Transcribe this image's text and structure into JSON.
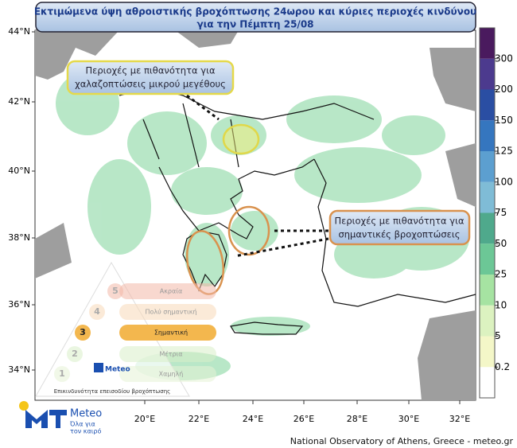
{
  "title": [
    "Εκτιμώμενα ύψη αθροιστικής βροχόπτωσης 24ωρου και κύριες περιοχές κινδύνου",
    "για την Πέμπτη 25/08"
  ],
  "annotations": [
    {
      "text": [
        "Περιοχές με πιθανότητα για",
        "χαλαζοπτώσεις μικρού μεγέθους"
      ]
    },
    {
      "text": [
        "Περιοχές με πιθανότητα για",
        "σημαντικές βροχοπτώσεις"
      ]
    }
  ],
  "lat_labels": [
    "44°N",
    "42°N",
    "40°N",
    "38°N",
    "36°N",
    "34°N"
  ],
  "lon_labels": [
    "20°E",
    "22°E",
    "24°E",
    "26°E",
    "28°E",
    "30°E",
    "32°E"
  ],
  "colorbar": {
    "labels": [
      "0.2",
      "5",
      "10",
      "25",
      "50",
      "75",
      "100",
      "125",
      "150",
      "200",
      "300"
    ],
    "colors": [
      "#ffffff",
      "#f4f7c8",
      "#dcf2c0",
      "#a6e3a2",
      "#6cc796",
      "#4fa98c",
      "#7fbcd6",
      "#5c9fd0",
      "#3576bf",
      "#2a4ea3",
      "#4c3a8e",
      "#4a1a5e"
    ]
  },
  "risk_scale": {
    "levels": [
      {
        "number": "5",
        "label": "Ακραία",
        "color": "#f3b8a8"
      },
      {
        "number": "4",
        "label": "Πολύ σημαντική",
        "color": "#f7d8b8"
      },
      {
        "number": "3",
        "label": "Σημαντική",
        "color": "#f3b74e"
      },
      {
        "number": "2",
        "label": "Μέτρια",
        "color": "#d8eec8"
      },
      {
        "number": "1",
        "label": "Χαμηλή",
        "color": "#e6f2d6"
      }
    ],
    "brand": "Meteo",
    "caption": "Επικινδυνότητα επεισοδίου βροχόπτωσης"
  },
  "logo": {
    "name": "Meteo",
    "tagline": [
      "Όλα για",
      "τον καιρό"
    ]
  },
  "footer": "National Observatory of Athens, Greece - meteo.gr"
}
